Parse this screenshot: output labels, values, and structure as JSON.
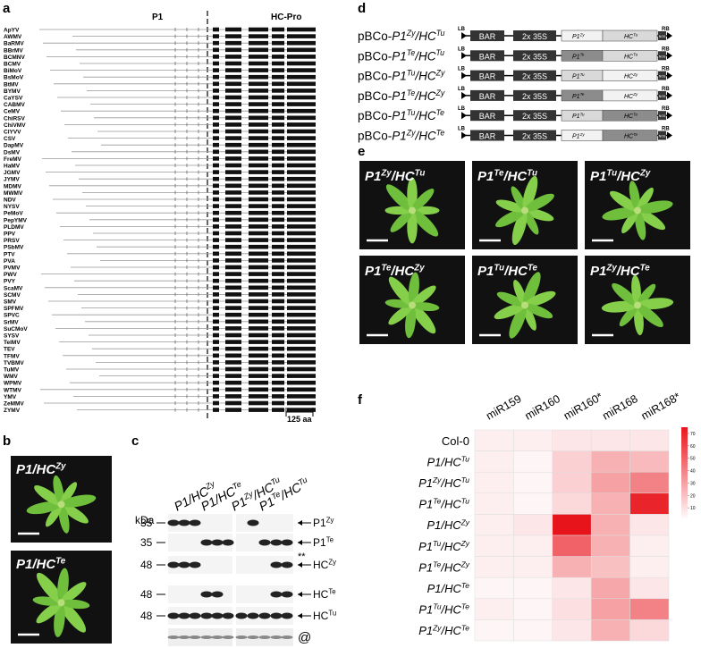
{
  "panels": {
    "a": "a",
    "b": "b",
    "c": "c",
    "d": "d",
    "e": "e",
    "f": "f"
  },
  "a": {
    "headers": [
      "P1",
      "HC-Pro"
    ],
    "viruses": [
      "ApYV",
      "AWMV",
      "BaRMV",
      "BBrMV",
      "BCMNV",
      "BCMV",
      "BiMoV",
      "BsMoV",
      "BtMV",
      "BYMV",
      "CaYSV",
      "CABMV",
      "CeMV",
      "ChiRSV",
      "ChiVMV",
      "ClYVV",
      "CSV",
      "DapMV",
      "DsMV",
      "FreMV",
      "HaMV",
      "JGMV",
      "JYMV",
      "MDMV",
      "MWMV",
      "NDV",
      "NYSV",
      "PeMoV",
      "PepYMV",
      "PLDMV",
      "PPV",
      "PRSV",
      "PSbMV",
      "PTV",
      "PVA",
      "PVMV",
      "PWV",
      "PVY",
      "ScaMV",
      "SCMV",
      "SMV",
      "SPFMV",
      "SPVC",
      "SrMV",
      "SuCMoV",
      "SYSV",
      "TelMV",
      "TEV",
      "TFMV",
      "TVBMV",
      "TuMV",
      "WMV",
      "WPMV",
      "WTMV",
      "YMV",
      "ZeMMV",
      "ZYMV"
    ],
    "scale": "125 aa"
  },
  "b": {
    "labels": [
      {
        "a": "P1/HC",
        "as": "Zy"
      },
      {
        "a": "P1/HC",
        "as": "Te"
      }
    ]
  },
  "c": {
    "kda": "kDa",
    "columns": [
      {
        "a": "P1/HC",
        "as": "Zy"
      },
      {
        "a": "P1/HC",
        "as": "Te"
      },
      {
        "a": "P1",
        "as": "Zy",
        "b": "/HC",
        "bs": "Tu"
      },
      {
        "a": "P1",
        "as": "Te",
        "b": "/HC",
        "bs": "Tu"
      }
    ],
    "rows": [
      {
        "size": "35",
        "label": {
          "a": "P1",
          "as": "Zy"
        }
      },
      {
        "size": "35",
        "label": {
          "a": "P1",
          "as": "Te"
        }
      },
      {
        "size": "48",
        "label": {
          "a": "HC",
          "as": "Zy"
        },
        "note": "**"
      },
      {
        "size": "48",
        "label": {
          "a": "HC",
          "as": "Te"
        }
      },
      {
        "size": "48",
        "label": {
          "a": "HC",
          "as": "Tu"
        }
      },
      {
        "label": {
          "a": "@"
        }
      }
    ]
  },
  "d": {
    "parts": {
      "lb": "LB",
      "rb": "RB",
      "bar": "BAR",
      "promoter": "2x 35S",
      "nos": "NOS"
    },
    "constructs": [
      {
        "label": {
          "pre": "pBCo-",
          "a": "P1",
          "as": "Zy",
          "b": "/HC",
          "bs": "Tu"
        },
        "p1": {
          "a": "P1",
          "as": "Zy"
        },
        "hc": {
          "a": "HC",
          "as": "Tu"
        },
        "p1_color": "#f2f2f2",
        "hc_color": "#d9d9d9"
      },
      {
        "label": {
          "pre": "pBCo-",
          "a": "P1",
          "as": "Te",
          "b": "/HC",
          "bs": "Tu"
        },
        "p1": {
          "a": "P1",
          "as": "Te"
        },
        "hc": {
          "a": "HC",
          "as": "Tu"
        },
        "p1_color": "#8c8c8c",
        "hc_color": "#d9d9d9"
      },
      {
        "label": {
          "pre": "pBCo-",
          "a": "P1",
          "as": "Tu",
          "b": "/HC",
          "bs": "Zy"
        },
        "p1": {
          "a": "P1",
          "as": "Tu"
        },
        "hc": {
          "a": "HC",
          "as": "Zy"
        },
        "p1_color": "#d9d9d9",
        "hc_color": "#f2f2f2"
      },
      {
        "label": {
          "pre": "pBCo-",
          "a": "P1",
          "as": "Te",
          "b": "/HC",
          "bs": "Zy"
        },
        "p1": {
          "a": "P1",
          "as": "Te"
        },
        "hc": {
          "a": "HC",
          "as": "Zy"
        },
        "p1_color": "#8c8c8c",
        "hc_color": "#f2f2f2"
      },
      {
        "label": {
          "pre": "pBCo-",
          "a": "P1",
          "as": "Tu",
          "b": "/HC",
          "bs": "Te"
        },
        "p1": {
          "a": "P1",
          "as": "Tu"
        },
        "hc": {
          "a": "HC",
          "as": "Te"
        },
        "p1_color": "#d9d9d9",
        "hc_color": "#8c8c8c"
      },
      {
        "label": {
          "pre": "pBCo-",
          "a": "P1",
          "as": "Zy",
          "b": "/HC",
          "bs": "Te"
        },
        "p1": {
          "a": "P1",
          "as": "Zy"
        },
        "hc": {
          "a": "HC",
          "as": "Te"
        },
        "p1_color": "#f2f2f2",
        "hc_color": "#8c8c8c"
      }
    ]
  },
  "e": {
    "labels": [
      {
        "a": "P1",
        "as": "Zy",
        "b": "/HC",
        "bs": "Tu"
      },
      {
        "a": "P1",
        "as": "Te",
        "b": "/HC",
        "bs": "Tu"
      },
      {
        "a": "P1",
        "as": "Tu",
        "b": "/HC",
        "bs": "Zy"
      },
      {
        "a": "P1",
        "as": "Te",
        "b": "/HC",
        "bs": "Zy"
      },
      {
        "a": "P1",
        "as": "Tu",
        "b": "/HC",
        "bs": "Te"
      },
      {
        "a": "P1",
        "as": "Zy",
        "b": "/HC",
        "bs": "Te"
      }
    ]
  },
  "chart_data": {
    "type": "heatmap",
    "color": "#e8141c",
    "columns": [
      "miR159",
      "miR160",
      "miR160*",
      "miR168",
      "miR168*"
    ],
    "rows": [
      {
        "pre": "Col-0"
      },
      {
        "a": "P1/HC",
        "as": "Tu"
      },
      {
        "a": "P1",
        "as": "Zy",
        "b": "/HC",
        "bs": "Tu"
      },
      {
        "a": "P1",
        "as": "Te",
        "b": "/HC",
        "bs": "Tu"
      },
      {
        "a": "P1/HC",
        "as": "Zy"
      },
      {
        "a": "P1",
        "as": "Tu",
        "b": "/HC",
        "bs": "Zy"
      },
      {
        "a": "P1",
        "as": "Te",
        "b": "/HC",
        "bs": "Zy"
      },
      {
        "a": "P1/HC",
        "as": "Te"
      },
      {
        "a": "P1",
        "as": "Tu",
        "b": "/HC",
        "bs": "Te"
      },
      {
        "a": "P1",
        "as": "Zy",
        "b": "/HC",
        "bs": "Te"
      }
    ],
    "values": [
      [
        5,
        5,
        8,
        8,
        8
      ],
      [
        5,
        3,
        15,
        25,
        22
      ],
      [
        5,
        3,
        15,
        30,
        40
      ],
      [
        5,
        3,
        12,
        25,
        70
      ],
      [
        5,
        8,
        75,
        25,
        8
      ],
      [
        5,
        5,
        50,
        25,
        5
      ],
      [
        5,
        5,
        25,
        20,
        5
      ],
      [
        3,
        3,
        8,
        28,
        8
      ],
      [
        5,
        3,
        10,
        30,
        40
      ],
      [
        3,
        3,
        8,
        25,
        12
      ]
    ],
    "zlim": [
      0,
      75
    ],
    "zticks": [
      10,
      20,
      30,
      40,
      50,
      60,
      70
    ]
  }
}
